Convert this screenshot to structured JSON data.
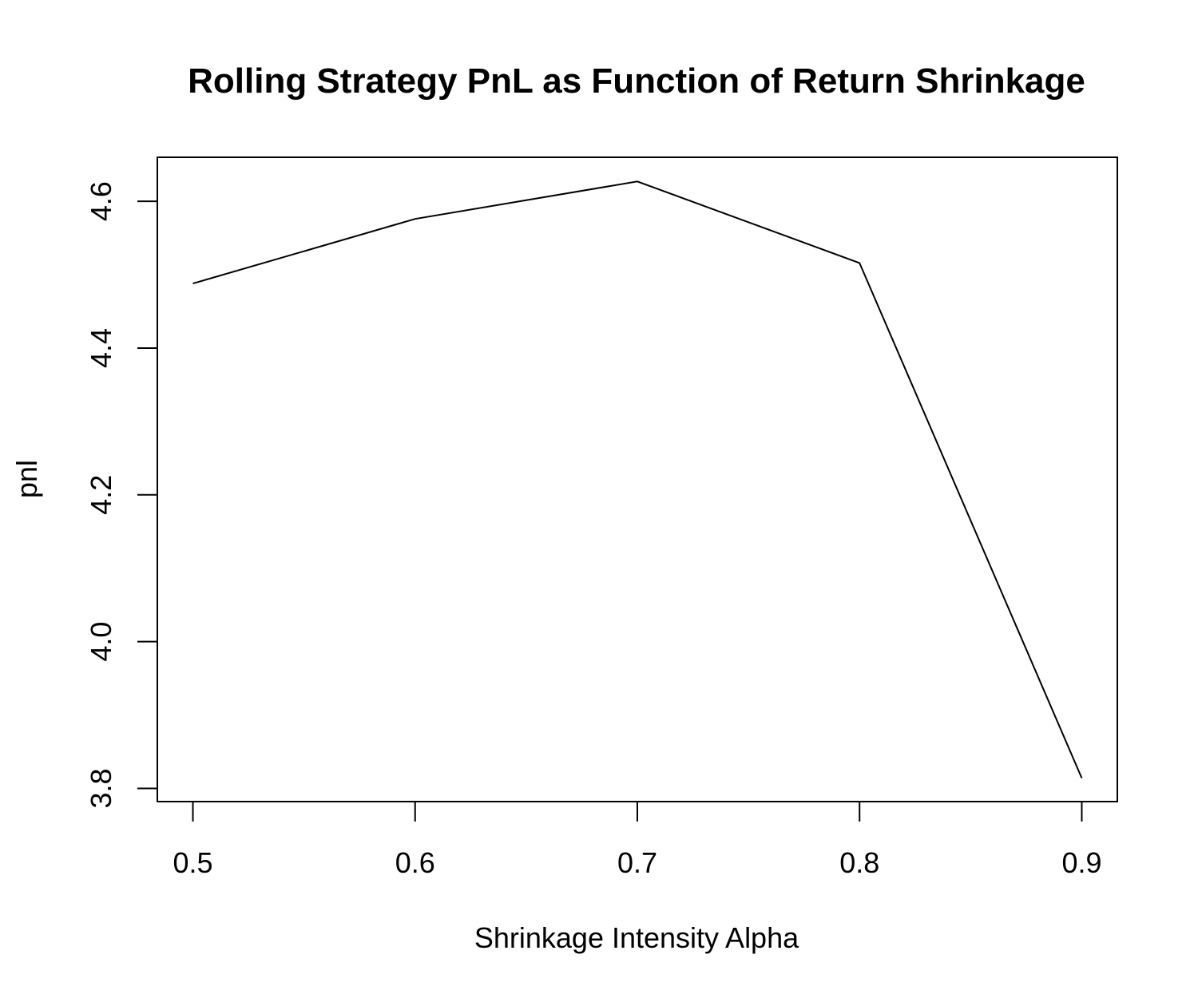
{
  "chart_data": {
    "type": "line",
    "title": "Rolling Strategy PnL as Function of Return Shrinkage",
    "xlabel": "Shrinkage Intensity Alpha",
    "ylabel": "pnl",
    "x": [
      0.5,
      0.6,
      0.7,
      0.8,
      0.9
    ],
    "y": [
      4.488,
      4.576,
      4.627,
      4.516,
      3.814
    ],
    "xlim": [
      0.484,
      0.916
    ],
    "ylim": [
      3.782,
      4.66
    ],
    "x_ticks": [
      0.5,
      0.6,
      0.7,
      0.8,
      0.9
    ],
    "x_tick_labels": [
      "0.5",
      "0.6",
      "0.7",
      "0.8",
      "0.9"
    ],
    "y_ticks": [
      3.8,
      4.0,
      4.2,
      4.4,
      4.6
    ],
    "y_tick_labels": [
      "3.8",
      "4.0",
      "4.2",
      "4.4",
      "4.6"
    ],
    "grid": false,
    "line_color": "#000000"
  }
}
